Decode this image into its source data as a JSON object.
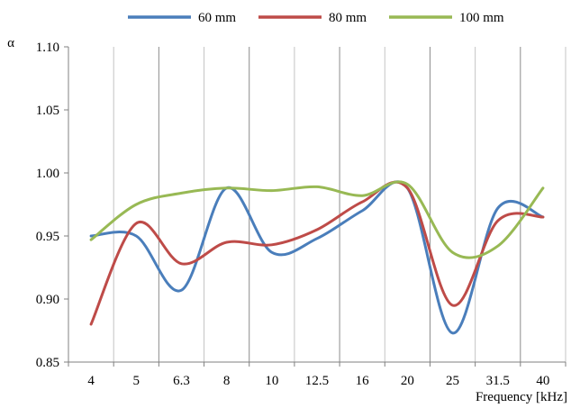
{
  "chart_data": {
    "type": "line",
    "ylabel": "α",
    "xlabel": "Frequency [kHz]",
    "categories": [
      "4",
      "5",
      "6.3",
      "8",
      "10",
      "12.5",
      "16",
      "20",
      "25",
      "31.5",
      "40"
    ],
    "ylim": [
      0.85,
      1.1
    ],
    "yticks": [
      "0.85",
      "0.90",
      "0.95",
      "1.00",
      "1.05",
      "1.10"
    ],
    "grid": "vertical",
    "legend_position": "top",
    "series": [
      {
        "name": "60 mm",
        "color": "#4a7ebb",
        "values": [
          0.95,
          0.95,
          0.907,
          0.988,
          0.937,
          0.948,
          0.97,
          0.988,
          0.873,
          0.972,
          0.965
        ]
      },
      {
        "name": "80 mm",
        "color": "#be4b48",
        "values": [
          0.88,
          0.96,
          0.928,
          0.945,
          0.943,
          0.955,
          0.977,
          0.988,
          0.895,
          0.962,
          0.965
        ]
      },
      {
        "name": "100 mm",
        "color": "#98b954",
        "values": [
          0.947,
          0.975,
          0.984,
          0.988,
          0.986,
          0.989,
          0.982,
          0.991,
          0.937,
          0.942,
          0.988
        ]
      }
    ]
  }
}
